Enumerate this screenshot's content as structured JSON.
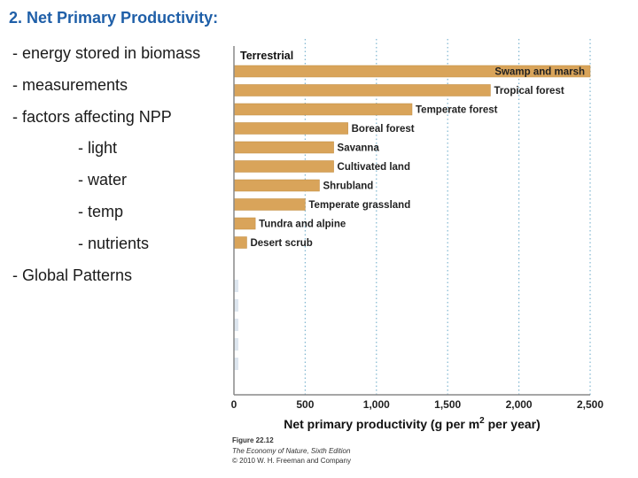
{
  "slide": {
    "title": "2. Net Primary Productivity:",
    "bullets": [
      "- energy stored in biomass",
      "- measurements",
      "- factors affecting NPP",
      "- light",
      "- water",
      "- temp",
      "- nutrients",
      "- Global Patterns"
    ]
  },
  "chart_data": {
    "type": "bar",
    "orientation": "horizontal",
    "section_label": "Terrestrial",
    "categories": [
      "Swamp and marsh",
      "Tropical forest",
      "Temperate forest",
      "Boreal forest",
      "Savanna",
      "Cultivated land",
      "Shrubland",
      "Temperate grassland",
      "Tundra and alpine",
      "Desert scrub"
    ],
    "values": [
      2500,
      1800,
      1250,
      800,
      700,
      700,
      600,
      500,
      150,
      90
    ],
    "xlabel": "Net primary productivity (g per m",
    "xlabel_sup": "2",
    "xlabel_suffix": " per year)",
    "xlim": [
      0,
      2500
    ],
    "ticks": [
      0,
      500,
      1000,
      1500,
      2000,
      2500
    ],
    "tick_labels": [
      "0",
      "500",
      "1,000",
      "1,500",
      "2,000",
      "2,500"
    ],
    "bar_color": "#d9a45a",
    "grid": true
  },
  "caption": {
    "figure": "Figure 22.12",
    "source": "The Economy of Nature, Sixth Edition",
    "copyright": "© 2010 W. H. Freeman and Company"
  }
}
